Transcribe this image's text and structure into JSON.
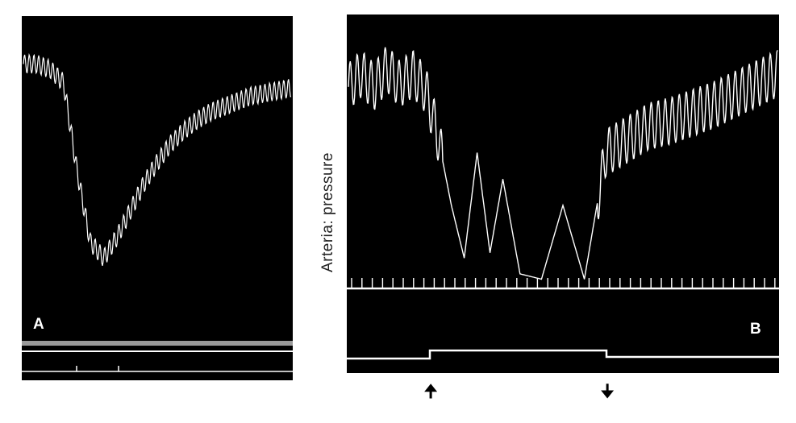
{
  "figure": {
    "panel_a_label": "A",
    "panel_b_label": "B",
    "y_axis_label": "Arteria: pressure",
    "arrow_on_icon": "up-arrow",
    "arrow_off_icon": "down-arrow",
    "arrow_on_glyph": "🠉",
    "arrow_off_glyph": "🠋",
    "trace_color": "#ffffff",
    "background_color": "#000000"
  },
  "chart_data": [
    {
      "type": "line",
      "panel": "A",
      "title": "",
      "xlabel": "",
      "ylabel": "",
      "series": [
        {
          "x": [
            0,
            5,
            10,
            15,
            20,
            25,
            30,
            35,
            40,
            45,
            50,
            55,
            60,
            65,
            70,
            75,
            80,
            85,
            90,
            95,
            100
          ],
          "values": [
            0.85,
            0.85,
            0.83,
            0.78,
            0.45,
            0.18,
            0.12,
            0.2,
            0.3,
            0.4,
            0.48,
            0.55,
            0.6,
            0.64,
            0.67,
            0.69,
            0.71,
            0.73,
            0.74,
            0.75,
            0.76
          ]
        }
      ]
    },
    {
      "type": "line",
      "panel": "B",
      "title": "",
      "xlabel": "",
      "ylabel": "Arteria: pressure",
      "series": [
        {
          "x": [
            0,
            3,
            6,
            9,
            12,
            15,
            18,
            21,
            24,
            27,
            30,
            33,
            36,
            40,
            45,
            50,
            55,
            60,
            65,
            70,
            75,
            80,
            85,
            90,
            95,
            100
          ],
          "values": [
            0.75,
            0.8,
            0.75,
            0.82,
            0.76,
            0.8,
            0.74,
            0.55,
            0.3,
            0.1,
            0.5,
            0.12,
            0.4,
            0.04,
            0.02,
            0.3,
            0.02,
            0.5,
            0.55,
            0.6,
            0.62,
            0.65,
            0.68,
            0.72,
            0.76,
            0.8
          ]
        }
      ]
    }
  ]
}
